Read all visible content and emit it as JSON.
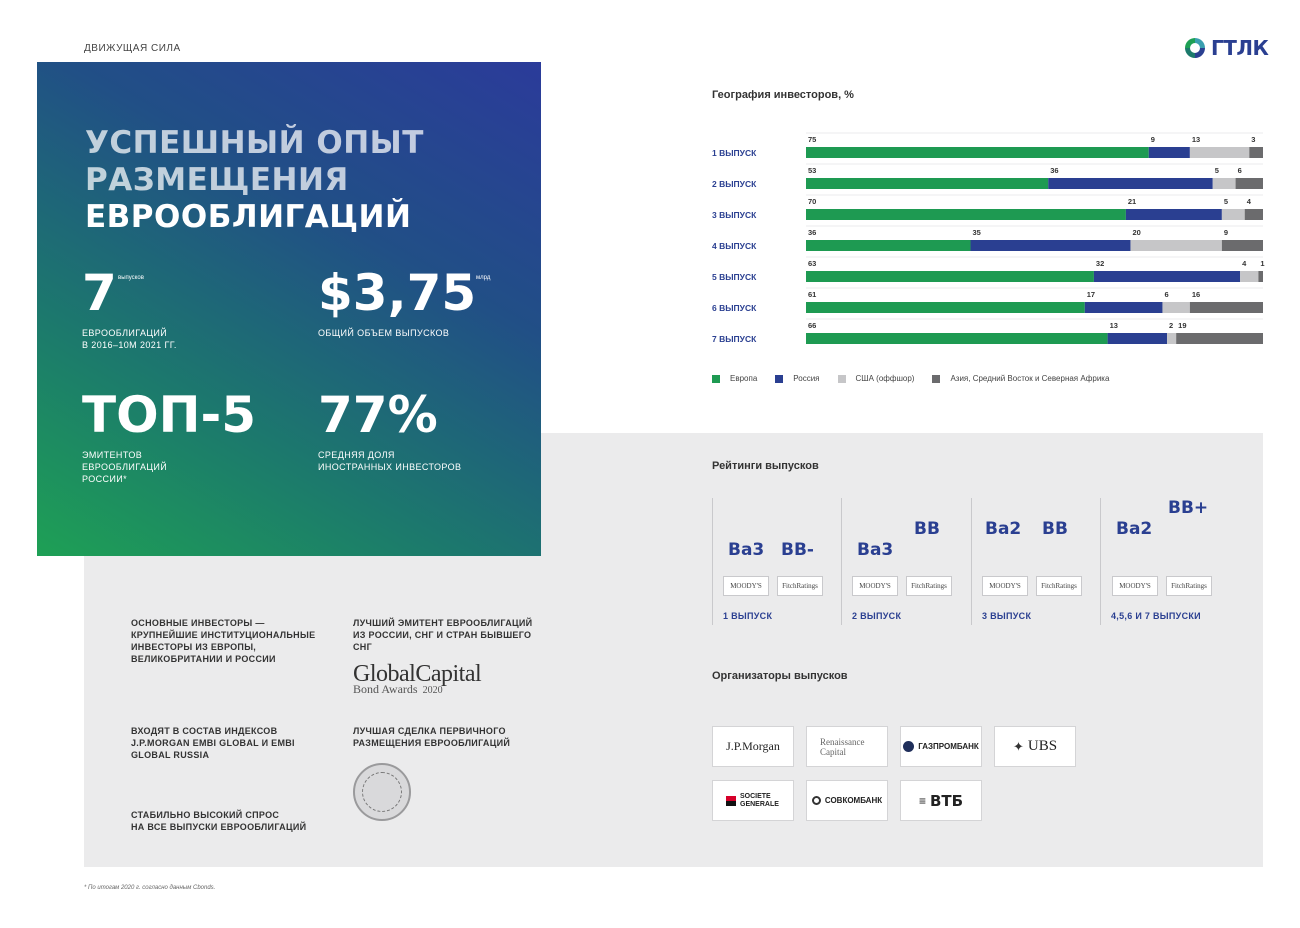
{
  "section_label": "ДВИЖУЩАЯ СИЛА",
  "logo": {
    "text": "ГТЛК",
    "colors": [
      "#1ea055",
      "#2a3f91"
    ]
  },
  "hero": {
    "title_line1": "УСПЕШНЫЙ ОПЫТ",
    "title_line2": "РАЗМЕЩЕНИЯ",
    "title_line3": "ЕВРООБЛИГАЦИЙ",
    "stats": [
      {
        "value": "7",
        "unit": "выпусков",
        "desc_line1": "ЕВРООБЛИГАЦИЙ",
        "desc_line2": "В 2016–10М 2021 ГГ.",
        "desc_line3": ""
      },
      {
        "value": "$3,75",
        "unit": "млрд",
        "desc_line1": "ОБЩИЙ ОБЪЕМ ВЫПУСКОВ",
        "desc_line2": "",
        "desc_line3": ""
      },
      {
        "value": "ТОП-5",
        "unit": "",
        "desc_line1": "ЭМИТЕНТОВ",
        "desc_line2": "ЕВРООБЛИГАЦИЙ",
        "desc_line3": "РОССИИ*"
      },
      {
        "value": "77%",
        "unit": "",
        "desc_line1": "СРЕДНЯЯ ДОЛЯ",
        "desc_line2": "ИНОСТРАННЫХ ИНВЕСТОРОВ",
        "desc_line3": ""
      }
    ]
  },
  "chart_data": {
    "type": "bar",
    "orientation": "horizontal",
    "stacked": true,
    "title": "География инвесторов, %",
    "categories": [
      "1 ВЫПУСК",
      "2 ВЫПУСК",
      "3 ВЫПУСК",
      "4 ВЫПУСК",
      "5 ВЫПУСК",
      "6 ВЫПУСК",
      "7 ВЫПУСК"
    ],
    "series": [
      {
        "name": "Европа",
        "color": "#1e9a52",
        "values": [
          75,
          53,
          70,
          36,
          63,
          61,
          66
        ]
      },
      {
        "name": "Россия",
        "color": "#2a3f91",
        "values": [
          9,
          36,
          21,
          35,
          32,
          17,
          13
        ]
      },
      {
        "name": "США (оффшор)",
        "color": "#c6c6c8",
        "values": [
          13,
          5,
          5,
          20,
          4,
          6,
          2
        ]
      },
      {
        "name": "Азия, Средний Восток и Северная Африка",
        "color": "#6b6b6d",
        "values": [
          3,
          6,
          4,
          9,
          1,
          16,
          19
        ]
      }
    ],
    "xlim": [
      0,
      100
    ],
    "legend": "bottom"
  },
  "ratings": {
    "title": "Рейтинги выпусков",
    "agencies": {
      "moodys": "MOODY'S",
      "fitch": "FitchRatings"
    },
    "groups": [
      {
        "moodys": "Ba3",
        "fitch": "BB-",
        "label": "1 ВЫПУСК"
      },
      {
        "moodys": "Ba3",
        "fitch": "BB",
        "label": "2 ВЫПУСК"
      },
      {
        "moodys": "Ba2",
        "fitch": "BB",
        "label": "3 ВЫПУСК"
      },
      {
        "moodys": "Ba2",
        "fitch": "BB+",
        "label": "4,5,6 И 7 ВЫПУСКИ"
      }
    ]
  },
  "organizers": {
    "title": "Организаторы выпусков",
    "items": [
      "J.P.Morgan",
      "Renaissance Capital",
      "ГАЗПРОМБАНК",
      "UBS",
      "SOCIETE GENERALE",
      "СОВКОМБАНК",
      "ВТБ"
    ]
  },
  "bullets": {
    "b1": [
      "ОСНОВНЫЕ ИНВЕСТОРЫ —",
      "КРУПНЕЙШИЕ ИНСТИТУЦИОНАЛЬНЫЕ",
      "ИНВЕСТОРЫ ИЗ ЕВРОПЫ,",
      "ВЕЛИКОБРИТАНИИ И РОССИИ"
    ],
    "b2": [
      "ВХОДЯТ В СОСТАВ ИНДЕКСОВ",
      "J.P.MORGAN EMBI GLOBAL И EMBI",
      "GLOBAL RUSSIA"
    ],
    "b3": [
      "СТАБИЛЬНО ВЫСОКИЙ СПРОС",
      "НА ВСЕ ВЫПУСКИ ЕВРООБЛИГАЦИЙ"
    ],
    "a1": [
      "ЛУЧШИЙ ЭМИТЕНТ ЕВРООБЛИГАЦИЙ",
      "ИЗ РОССИИ, СНГ И СТРАН БЫВШЕГО",
      "СНГ"
    ],
    "a2": [
      "ЛУЧШАЯ СДЕЛКА ПЕРВИЧНОГО",
      "РАЗМЕЩЕНИЯ ЕВРООБЛИГАЦИЙ"
    ]
  },
  "award": {
    "brand": "GlobalCapital",
    "sub": "Bond Awards",
    "year": "2020"
  },
  "footnote": "* По итогам 2020 г. согласно данным Cbonds."
}
